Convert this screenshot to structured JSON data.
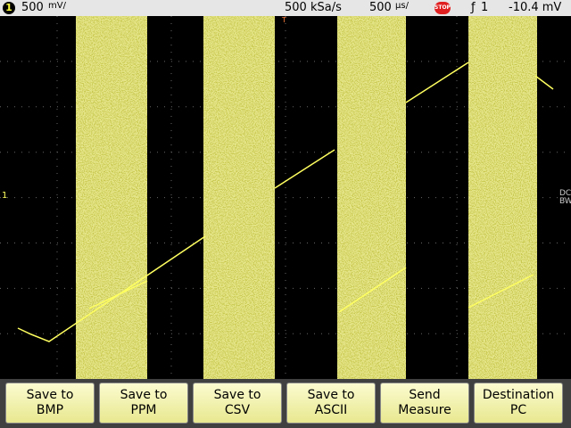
{
  "status_bar": {
    "channel": "1",
    "vertical_scale": "500",
    "vertical_unit": "mV/",
    "sample_rate": "500 kSa/s",
    "time_scale": "500",
    "time_unit": "µs/",
    "run_state": "STOP",
    "trigger_source": "1",
    "trigger_level": "-10.4 mV"
  },
  "screen": {
    "channel_marker": "1",
    "trigger_marker": "T",
    "coupling": "DC",
    "bandwidth": "BW"
  },
  "softkeys": [
    {
      "line1": "Save to",
      "line2": "BMP"
    },
    {
      "line1": "Save to",
      "line2": "PPM"
    },
    {
      "line1": "Save to",
      "line2": "CSV"
    },
    {
      "line1": "Save to",
      "line2": "ASCII"
    },
    {
      "line1": "Send",
      "line2": "Measure"
    },
    {
      "line1": "Destination",
      "line2": "PC"
    }
  ]
}
